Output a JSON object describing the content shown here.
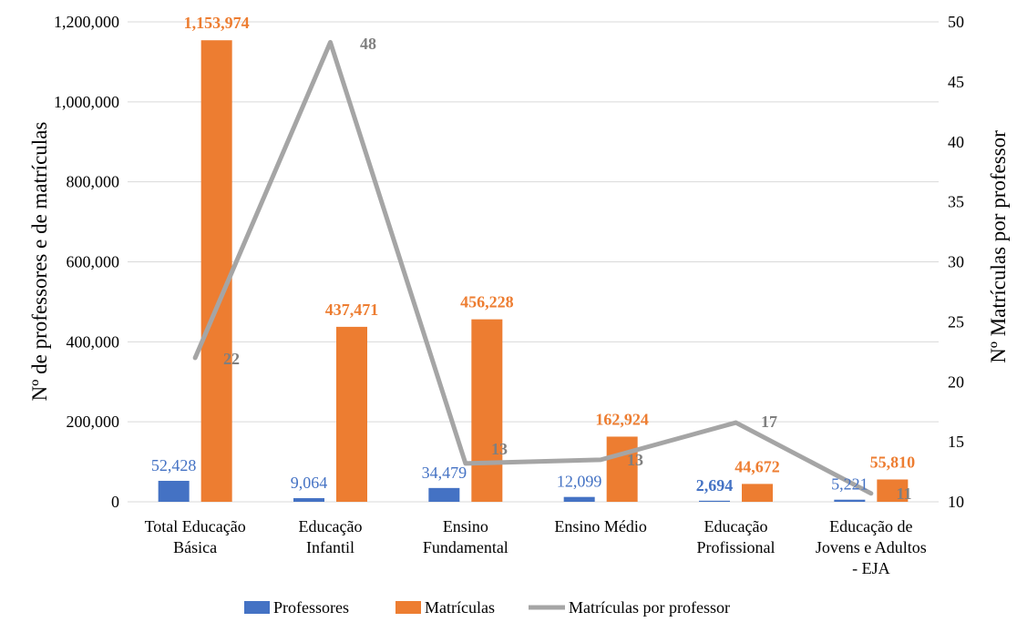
{
  "chart_data": {
    "type": "bar",
    "categories": [
      [
        "Total Educação",
        "Básica"
      ],
      [
        "Educação",
        "Infantil"
      ],
      [
        "Ensino",
        "Fundamental"
      ],
      [
        "Ensino Médio"
      ],
      [
        "Educação",
        "Profissional"
      ],
      [
        "Educação de",
        "Jovens e Adultos",
        "- EJA"
      ]
    ],
    "series": [
      {
        "name": "Professores",
        "kind": "bar",
        "axis": "left",
        "color": "#4472c4",
        "values": [
          52428,
          9064,
          34479,
          12099,
          2694,
          5221
        ],
        "labels": [
          "52,428",
          "9,064",
          "34,479",
          "12,099",
          "2,694",
          "5,221"
        ]
      },
      {
        "name": "Matrículas",
        "kind": "bar",
        "axis": "left",
        "color": "#ed7d31",
        "values": [
          1153974,
          437471,
          456228,
          162924,
          44672,
          55810
        ],
        "labels": [
          "1,153,974",
          "437,471",
          "456,228",
          "162,924",
          "44,672",
          "55,810"
        ]
      },
      {
        "name": "Matrículas por professor",
        "kind": "line",
        "axis": "right",
        "color": "#a5a5a5",
        "values": [
          22,
          48.3,
          13.2,
          13.5,
          16.6,
          10.7
        ],
        "labels": [
          "22",
          "48",
          "13",
          "13",
          "17",
          "11"
        ]
      }
    ],
    "y_left": {
      "label": "Nº de professores e de matrículas",
      "range": [
        0,
        1200000
      ],
      "ticks": [
        0,
        200000,
        400000,
        600000,
        800000,
        1000000,
        1200000
      ],
      "tick_labels": [
        "0",
        "200,000",
        "400,000",
        "600,000",
        "800,000",
        "1,000,000",
        "1,200,000"
      ]
    },
    "y_right": {
      "label": "Nº Matrículas por professor",
      "range": [
        10,
        50
      ],
      "ticks": [
        10,
        15,
        20,
        25,
        30,
        35,
        40,
        45,
        50
      ],
      "tick_labels": [
        "10",
        "15",
        "20",
        "25",
        "30",
        "35",
        "40",
        "45",
        "50"
      ]
    },
    "grid": true,
    "legend": "bottom-center"
  }
}
